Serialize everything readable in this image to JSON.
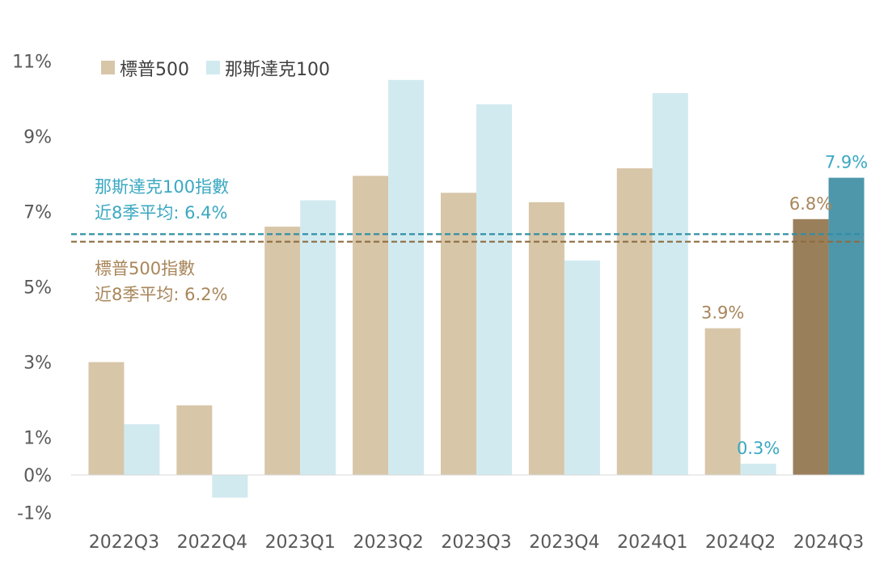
{
  "chart_data": {
    "type": "bar",
    "categories": [
      "2022Q3",
      "2022Q4",
      "2023Q1",
      "2023Q2",
      "2023Q3",
      "2023Q4",
      "2024Q1",
      "2024Q2",
      "2024Q3"
    ],
    "series": [
      {
        "name": "標普500",
        "values": [
          3.0,
          1.85,
          6.6,
          7.95,
          7.5,
          7.25,
          8.15,
          3.9,
          6.8
        ],
        "color": "#d7c6a8",
        "highlight_color": "#9a7f5b",
        "label_color": "#a8865a"
      },
      {
        "name": "那斯達克100",
        "values": [
          1.35,
          -0.6,
          7.3,
          10.5,
          9.85,
          5.7,
          10.15,
          0.3,
          7.9
        ],
        "color": "#d1eaf0",
        "highlight_color": "#4e97ab",
        "label_color": "#3aa8c2"
      }
    ],
    "highlight_category": "2024Q3",
    "data_labels": [
      {
        "series": 0,
        "category": "2024Q2",
        "text": "3.9%"
      },
      {
        "series": 1,
        "category": "2024Q2",
        "text": "0.3%"
      },
      {
        "series": 0,
        "category": "2024Q3",
        "text": "6.8%"
      },
      {
        "series": 1,
        "category": "2024Q3",
        "text": "7.9%"
      }
    ],
    "y_ticks": [
      {
        "value": 11,
        "label": "11%"
      },
      {
        "value": 9,
        "label": "9%"
      },
      {
        "value": 7,
        "label": "7%"
      },
      {
        "value": 5,
        "label": "5%"
      },
      {
        "value": 3,
        "label": "3%"
      },
      {
        "value": 1,
        "label": "1%"
      },
      {
        "value": 0,
        "label": "0%"
      },
      {
        "value": -1,
        "label": "-1%"
      }
    ],
    "ylim": [
      -1,
      11
    ],
    "grid": false,
    "legend_position": "top-left",
    "reference_lines": [
      {
        "series": 1,
        "value": 6.4,
        "color": "#2f8fa5",
        "line1": "那斯達克100指數",
        "line2": "近8季平均: 6.4%",
        "text_color": "#3aa8c2"
      },
      {
        "series": 0,
        "value": 6.2,
        "color": "#8e6d40",
        "line1": "標普500指數",
        "line2": "近8季平均: 6.2%",
        "text_color": "#a8865a"
      }
    ],
    "title": "",
    "xlabel": "",
    "ylabel": ""
  }
}
